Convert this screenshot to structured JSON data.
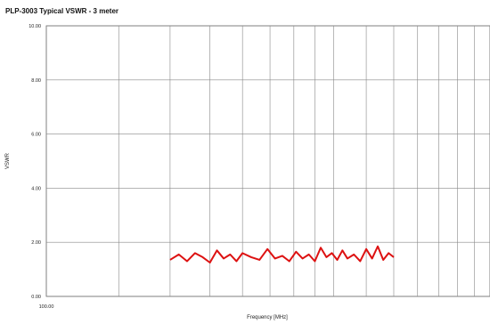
{
  "chart_data": {
    "type": "line",
    "title": "PLP-3003 Typical VSWR - 3 meter",
    "xlabel": "Frequency [MHz]",
    "ylabel": "VSWR",
    "x_scale": "log",
    "xlim": [
      100,
      1200
    ],
    "ylim": [
      0,
      10
    ],
    "grid": true,
    "y_ticks": [
      "0.00",
      "2.00",
      "4.00",
      "6.00",
      "8.00",
      "10.00"
    ],
    "x_tick_labels": [
      "100.00"
    ],
    "x_tick_values": [
      100
    ],
    "x_gridlines": [
      100,
      150,
      200,
      250,
      300,
      350,
      400,
      450,
      500,
      600,
      700,
      800,
      900,
      1000,
      1100,
      1200
    ],
    "series_color": "#dd1111",
    "series": [
      {
        "x": [
          200,
          210,
          220,
          230,
          240,
          250,
          260,
          270,
          280,
          290,
          300,
          315,
          330,
          345,
          360,
          375,
          390,
          405,
          420,
          435,
          450,
          465,
          480,
          495,
          510,
          525,
          540,
          560,
          580,
          600,
          620,
          640,
          660,
          680,
          700
        ],
        "y": [
          1.35,
          1.55,
          1.3,
          1.6,
          1.45,
          1.25,
          1.7,
          1.4,
          1.55,
          1.3,
          1.6,
          1.45,
          1.35,
          1.75,
          1.4,
          1.5,
          1.3,
          1.65,
          1.4,
          1.55,
          1.3,
          1.8,
          1.45,
          1.6,
          1.35,
          1.7,
          1.4,
          1.55,
          1.3,
          1.75,
          1.4,
          1.85,
          1.35,
          1.6,
          1.45
        ]
      }
    ]
  }
}
